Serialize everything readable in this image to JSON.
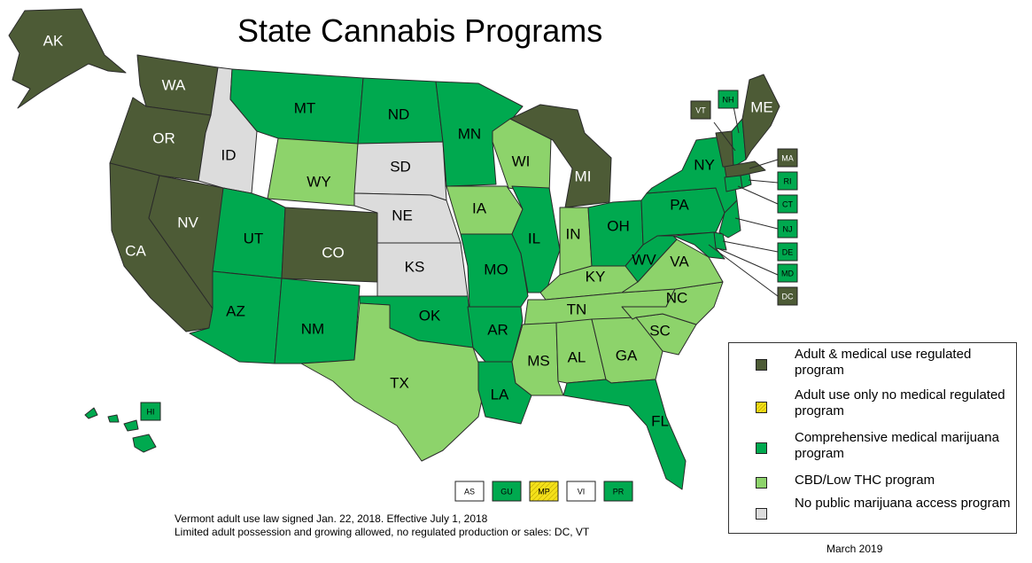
{
  "title": "State Cannabis Programs",
  "colors": {
    "adult_medical": "#4d5b36",
    "adult_only": "#f4e11a",
    "comprehensive_medical": "#00a94f",
    "cbd_low_thc": "#8dd36b",
    "no_access": "#dcdcdc"
  },
  "states": {
    "AK": "AK",
    "WA": "WA",
    "OR": "OR",
    "CA": "CA",
    "NV": "NV",
    "ID": "ID",
    "MT": "MT",
    "WY": "WY",
    "UT": "UT",
    "CO": "CO",
    "AZ": "AZ",
    "NM": "NM",
    "ND": "ND",
    "SD": "SD",
    "NE": "NE",
    "KS": "KS",
    "OK": "OK",
    "TX": "TX",
    "MN": "MN",
    "IA": "IA",
    "MO": "MO",
    "AR": "AR",
    "LA": "LA",
    "WI": "WI",
    "IL": "IL",
    "MI": "MI",
    "IN": "IN",
    "OH": "OH",
    "KY": "KY",
    "TN": "TN",
    "MS": "MS",
    "AL": "AL",
    "GA": "GA",
    "FL": "FL",
    "SC": "SC",
    "NC": "NC",
    "VA": "VA",
    "WV": "WV",
    "PA": "PA",
    "NY": "NY",
    "ME": "ME"
  },
  "small_states": {
    "VT": "VT",
    "NH": "NH",
    "MA": "MA",
    "RI": "RI",
    "CT": "CT",
    "NJ": "NJ",
    "DE": "DE",
    "MD": "MD",
    "DC": "DC",
    "HI": "HI"
  },
  "territories": [
    "AS",
    "GU",
    "MP",
    "VI",
    "PR"
  ],
  "legend": [
    {
      "label": "Adult & medical use regulated program",
      "key": "adult_medical"
    },
    {
      "label": "Adult use only no medical regulated program",
      "key": "adult_only"
    },
    {
      "label": "Comprehensive medical marijuana program",
      "key": "comprehensive_medical"
    },
    {
      "label": "CBD/Low THC program",
      "key": "cbd_low_thc"
    },
    {
      "label": "No public marijuana access program",
      "key": "no_access"
    }
  ],
  "notes": {
    "line1": "Vermont adult use law signed Jan. 22, 2018. Effective July 1, 2018",
    "line2": "Limited adult possession and growing allowed, no regulated production or sales: DC, VT"
  },
  "date": "March 2019"
}
